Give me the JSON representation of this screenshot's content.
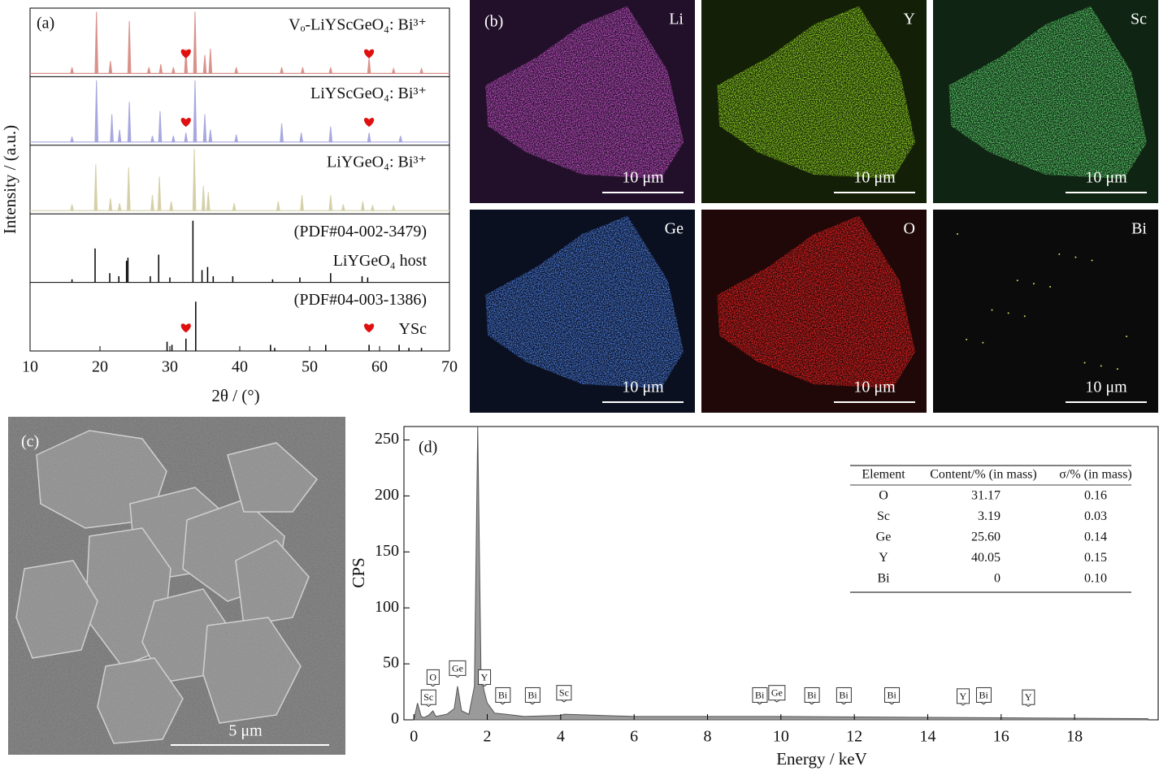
{
  "chart_data": [
    {
      "type": "xrd",
      "label": "(a)",
      "xlabel": "2θ / (°)",
      "ylabel": "Intensity / (a.u.)",
      "xlim": [
        10,
        70
      ],
      "xticks": [
        10,
        20,
        30,
        40,
        50,
        60,
        70
      ],
      "series": [
        {
          "name": "Vₒ-LiYScGeO₄: Bi³⁺",
          "color": "#d9928a",
          "style": "peaks",
          "markers": [
            32.3,
            58.5
          ],
          "x": [
            16,
            19.5,
            21.5,
            24.2,
            27,
            28.7,
            30.5,
            32.3,
            33.6,
            35,
            35.8,
            39.5,
            46,
            49,
            53,
            58.5,
            62,
            66
          ],
          "values": [
            10,
            100,
            20,
            85,
            10,
            15,
            10,
            40,
            100,
            30,
            40,
            10,
            10,
            10,
            10,
            25,
            8,
            8
          ]
        },
        {
          "name": "LiYScGeO₄: Bi³⁺",
          "color": "#a8a8e0",
          "style": "peaks",
          "markers": [
            32.3,
            58.5
          ],
          "x": [
            16,
            19.5,
            21.7,
            22.8,
            24.2,
            27.5,
            28.6,
            30.5,
            32.3,
            33.6,
            35,
            35.8,
            39.5,
            46,
            48.8,
            53,
            58.5,
            63
          ],
          "values": [
            8,
            100,
            45,
            20,
            65,
            10,
            50,
            10,
            15,
            100,
            45,
            20,
            12,
            30,
            15,
            25,
            15,
            10
          ]
        },
        {
          "name": "LiYGeO₄: Bi³⁺",
          "color": "#d6d0a8",
          "style": "peaks",
          "x": [
            16,
            19.4,
            21.5,
            22.8,
            24.1,
            27.5,
            28.5,
            30.2,
            33.5,
            34.8,
            35.5,
            39.2,
            45.5,
            48.9,
            53,
            54.8,
            57.6,
            59,
            62
          ],
          "values": [
            10,
            75,
            20,
            12,
            70,
            25,
            55,
            15,
            100,
            40,
            30,
            12,
            15,
            25,
            25,
            10,
            15,
            8,
            8
          ]
        },
        {
          "name": "LiYGeO₄ host",
          "pdf": "(PDF#04-002-3479)",
          "color": "#000000",
          "style": "sticks",
          "x": [
            16,
            19.3,
            21.4,
            22.7,
            23.8,
            24,
            27.2,
            28.4,
            30,
            33.3,
            34.6,
            35.4,
            36.2,
            39,
            44.7,
            48.6,
            53,
            57.5,
            58.3
          ],
          "values": [
            5,
            55,
            15,
            10,
            35,
            40,
            10,
            45,
            8,
            100,
            20,
            25,
            10,
            10,
            5,
            8,
            15,
            10,
            8
          ]
        },
        {
          "name": "YSc",
          "pdf": "(PDF#04-003-1386)",
          "color": "#000000",
          "style": "sticks",
          "markers": [
            32.3,
            58.5
          ],
          "x": [
            29.6,
            30.3,
            32.3,
            33.7,
            44.4,
            45,
            52.3,
            58.5,
            62.8,
            64.2,
            66
          ],
          "values": [
            15,
            10,
            20,
            80,
            10,
            5,
            10,
            10,
            10,
            5,
            5
          ]
        }
      ]
    },
    {
      "type": "area",
      "label": "(d)",
      "xlabel": "Energy / keV",
      "ylabel": "CPS",
      "color": "#9a9a9a",
      "xlim": [
        -0.27,
        20.3
      ],
      "xticks": [
        0,
        2,
        4,
        6,
        8,
        10,
        12,
        14,
        16,
        18
      ],
      "ylim": [
        0,
        262
      ],
      "yticks": [
        0,
        50,
        100,
        150,
        200,
        250
      ],
      "x": [
        0,
        0.1,
        0.2,
        0.28,
        0.4,
        0.52,
        0.6,
        0.9,
        1.1,
        1.19,
        1.3,
        1.5,
        1.65,
        1.74,
        1.83,
        1.92,
        2.0,
        2.2,
        2.5,
        3,
        4,
        4.1,
        6,
        10,
        15,
        20
      ],
      "values": [
        0,
        15,
        3,
        2,
        4,
        8,
        3,
        5,
        10,
        30,
        8,
        5,
        30,
        262,
        40,
        25,
        15,
        6,
        5,
        3,
        4,
        5,
        3,
        3,
        2,
        1
      ],
      "annotations": [
        {
          "text": "Sc",
          "x": 0.4,
          "y": 12
        },
        {
          "text": "O",
          "x": 0.52,
          "y": 30
        },
        {
          "text": "Ge",
          "x": 1.19,
          "y": 38
        },
        {
          "text": "Y",
          "x": 1.92,
          "y": 30
        },
        {
          "text": "Bi",
          "x": 2.42,
          "y": 14
        },
        {
          "text": "Bi",
          "x": 3.23,
          "y": 14
        },
        {
          "text": "Sc",
          "x": 4.09,
          "y": 16
        },
        {
          "text": "Bi",
          "x": 9.42,
          "y": 14
        },
        {
          "text": "Ge",
          "x": 9.89,
          "y": 16
        },
        {
          "text": "Bi",
          "x": 10.84,
          "y": 14
        },
        {
          "text": "Bi",
          "x": 11.71,
          "y": 14
        },
        {
          "text": "Bi",
          "x": 13.02,
          "y": 14
        },
        {
          "text": "Y",
          "x": 14.96,
          "y": 13
        },
        {
          "text": "Bi",
          "x": 15.52,
          "y": 14
        },
        {
          "text": "Y",
          "x": 16.74,
          "y": 12
        }
      ],
      "table": {
        "header": [
          "Element",
          "Content/% (in mass)",
          "σ/% (in mass)"
        ],
        "rows": [
          [
            "O",
            "31.17",
            "0.16"
          ],
          [
            "Sc",
            "3.19",
            "0.03"
          ],
          [
            "Ge",
            "25.60",
            "0.14"
          ],
          [
            "Y",
            "40.05",
            "0.15"
          ],
          [
            "Bi",
            "0",
            "0.10"
          ]
        ]
      }
    }
  ],
  "element_maps": {
    "label": "(b)",
    "scale_bar": "10 μm",
    "elements": [
      {
        "name": "Li",
        "color": "#c050c0",
        "background": "#22102a",
        "signal": "strong"
      },
      {
        "name": "Y",
        "color": "#8cd020",
        "background": "#141f08",
        "signal": "strong"
      },
      {
        "name": "Sc",
        "color": "#58c868",
        "background": "#0f2412",
        "signal": "strong"
      },
      {
        "name": "Ge",
        "color": "#4a7ad8",
        "background": "#0a1020",
        "signal": "strong"
      },
      {
        "name": "O",
        "color": "#e82020",
        "background": "#200808",
        "signal": "strong"
      },
      {
        "name": "Bi",
        "color": "#c8e060",
        "background": "#0b0b0b",
        "signal": "trace"
      }
    ]
  },
  "sem_image": {
    "label": "(c)",
    "scale_bar": "5 μm"
  }
}
